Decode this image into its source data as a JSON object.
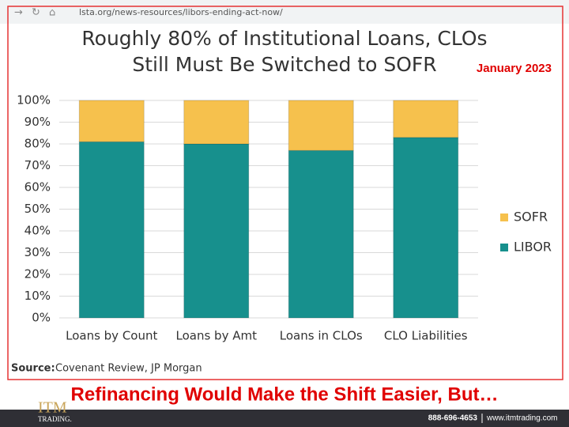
{
  "browser": {
    "url": "lsta.org/news-resources/libors-ending-act-now/"
  },
  "chart_data": {
    "type": "stacked_bar",
    "title": [
      "Roughly 80% of Institutional Loans, CLOs",
      "Still Must Be Switched to SOFR"
    ],
    "subtitle": "January 2023",
    "categories": [
      "Loans by Count",
      "Loans by Amt",
      "Loans in CLOs",
      "CLO Liabilities"
    ],
    "series": [
      {
        "name": "LIBOR",
        "color": "#17908d",
        "values": [
          81,
          80,
          77,
          83
        ]
      },
      {
        "name": "SOFR",
        "color": "#f6c14d",
        "values": [
          19,
          20,
          23,
          17
        ]
      }
    ],
    "ylim": [
      0,
      100
    ],
    "yticks": [
      {
        "value": 0,
        "label": "0%"
      },
      {
        "value": 10,
        "label": "10%"
      },
      {
        "value": 20,
        "label": "20%"
      },
      {
        "value": 30,
        "label": "30%"
      },
      {
        "value": 40,
        "label": "40%"
      },
      {
        "value": 50,
        "label": "50%"
      },
      {
        "value": 60,
        "label": "60%"
      },
      {
        "value": 70,
        "label": "70%"
      },
      {
        "value": 80,
        "label": "80%"
      },
      {
        "value": 90,
        "label": "90%"
      },
      {
        "value": 100,
        "label": "100%"
      }
    ],
    "grid": true,
    "legend": "right",
    "source_label": "Source:",
    "source": "Covenant Review, JP Morgan"
  },
  "caption": "Refinancing Would Make the Shift Easier, But…",
  "footer": {
    "logo": "ITM",
    "logo_sub": "TRADING.",
    "phone": "888-696-4653",
    "website": "www.itmtrading.com"
  }
}
